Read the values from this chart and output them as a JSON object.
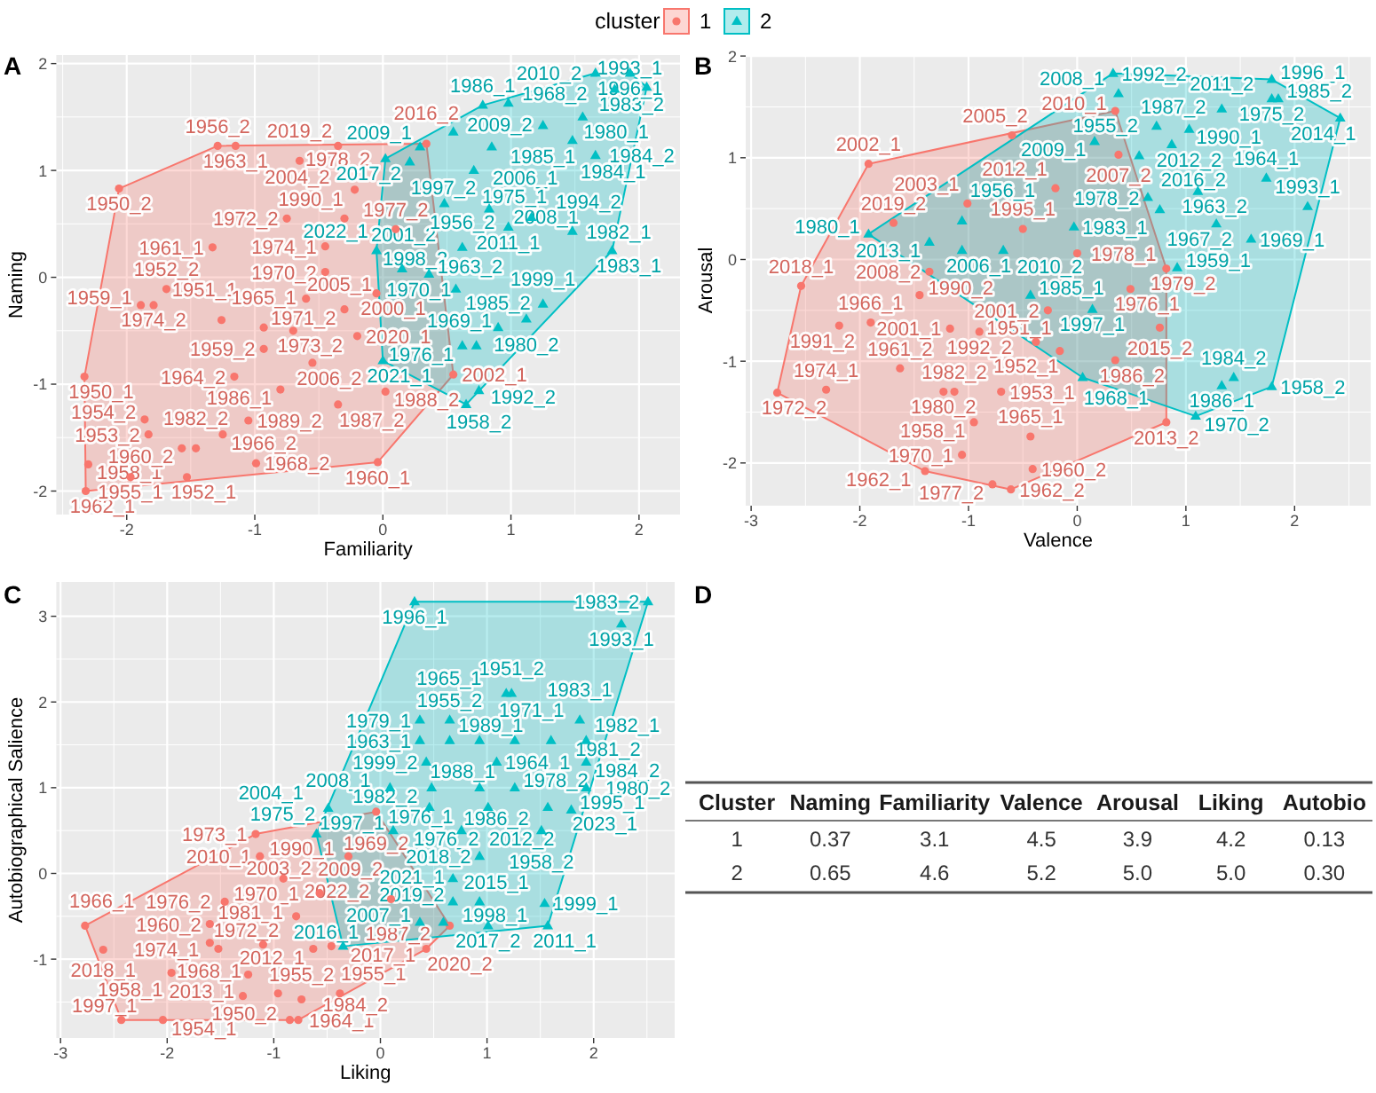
{
  "chart_data": [
    {
      "type": "scatter",
      "title": "A",
      "xlabel": "Familiarity",
      "ylabel": "Naming",
      "xlim": [
        -2.55,
        2.32
      ],
      "ylim": [
        -2.22,
        2.08
      ],
      "xticks": [
        -2,
        -1,
        0,
        1,
        2
      ],
      "yticks": [
        -2,
        -1,
        0,
        1,
        2
      ],
      "grid": true,
      "legend": "top",
      "legend_title": "cluster",
      "series": [
        {
          "name": "1",
          "color": "#f8766d",
          "marker": "circle",
          "x": [
            -2.06,
            -1.29,
            -1.15,
            -0.65,
            -0.35,
            0.34,
            -0.22,
            -0.75,
            -1.33,
            -0.45,
            -1.69,
            -1.89,
            -1.79,
            -1.26,
            -0.93,
            -0.93,
            -1.16,
            -2.33,
            -2.3,
            -2.32,
            -1.86,
            -1.83,
            -1.97,
            -1.53,
            -1.57,
            -1.46,
            -1.25,
            -1.05,
            -0.99,
            -0.04,
            -0.35,
            0.02,
            0.55,
            -0.45,
            -0.6,
            -0.3,
            -0.7,
            -0.2,
            -0.55,
            -0.8,
            -0.05,
            0.1,
            -0.3
          ],
          "values": [
            0.83,
            1.23,
            1.23,
            1.09,
            1.23,
            1.25,
            0.82,
            0.55,
            0.28,
            0.29,
            -0.11,
            -0.26,
            -0.26,
            -0.4,
            -0.47,
            -0.67,
            -0.93,
            -0.93,
            -1.75,
            -2.0,
            -1.33,
            -1.47,
            -1.87,
            -1.87,
            -1.6,
            -1.6,
            -1.47,
            -1.34,
            -1.74,
            -1.73,
            -1.19,
            -1.07,
            -0.91,
            0.05,
            -0.2,
            -0.3,
            -0.5,
            -0.55,
            -0.8,
            -1.05,
            -0.15,
            0.45,
            0.55
          ],
          "value_labels": [
            "1950_2",
            "1956_2",
            "1963_1",
            "2019_2",
            "2004_2",
            "2016_2",
            "1978_2",
            "1972_2",
            "1961_1",
            "1974_1",
            "1952_2",
            "1959_1",
            "1974_2",
            "1951_1",
            "1965_1",
            "1959_2",
            "1964_2",
            "1950_1",
            "1958_1",
            "1962_1",
            "1954_2",
            "1953_2",
            "1955_1",
            "1952_1",
            "1960_2",
            "1982_2",
            "1966_2",
            "1989_2",
            "1968_2",
            "1960_1",
            "1987_2",
            "1988_2",
            "2002_1",
            "1970_2",
            "2005_1",
            "1971_2",
            "1973_2",
            "2020_1",
            "2006_2",
            "1986_1",
            "2000_1",
            "1977_2",
            "1990_1"
          ]
        },
        {
          "name": "2",
          "color": "#00bfc4",
          "marker": "triangle",
          "x": [
            0.78,
            0.98,
            1.56,
            1.81,
            2.06,
            1.66,
            1.93,
            1.25,
            1.48,
            1.66,
            0.02,
            0.29,
            0.55,
            0.85,
            0.21,
            0.71,
            0.48,
            0.83,
            1.16,
            1.48,
            1.79,
            1.25,
            1.12,
            0.9,
            0.75,
            0.65,
            0.0,
            0.62,
            0.73,
            0.57,
            0.36,
            0.62,
            0.98,
            -0.05,
            0.15
          ],
          "values": [
            1.61,
            1.63,
            1.5,
            1.76,
            1.78,
            1.91,
            1.91,
            1.42,
            1.28,
            1.14,
            1.11,
            1.22,
            1.36,
            1.22,
            1.08,
            1.0,
            0.69,
            0.64,
            0.56,
            0.43,
            0.25,
            -0.25,
            -0.39,
            -0.47,
            -1.06,
            -1.19,
            -0.78,
            -0.64,
            -0.64,
            -0.11,
            0.03,
            0.28,
            0.47,
            0.25,
            0.08
          ],
          "value_labels": [
            "1986_1",
            "2010_2",
            "1980_1",
            "1983_2",
            "1993_1",
            "1968_2",
            "1996_1",
            "1985_1",
            "1984_1",
            "1984_2",
            "2017_2",
            "2009_1",
            "2009_2",
            "2006_1",
            "1997_2",
            "1975_1",
            "2001_2",
            "2008_1",
            "1994_2",
            "1982_1",
            "1983_1",
            "1999_1",
            "1980_2",
            "1985_2",
            "1958_2",
            "1992_2",
            "2021_1",
            "1976_1",
            "1969_1",
            "1998_2",
            "1963_2",
            "1956_2",
            "2011_1",
            "2022_1",
            "1970_1"
          ]
        }
      ]
    },
    {
      "type": "scatter",
      "title": "B",
      "xlabel": "Valence",
      "ylabel": "Arousal",
      "xlim": [
        -3.05,
        2.7
      ],
      "ylim": [
        -2.42,
        2.01
      ],
      "xticks": [
        -3,
        -2,
        -1,
        0,
        1,
        2
      ],
      "yticks": [
        -2,
        -1,
        0,
        1,
        2
      ],
      "grid": true,
      "series": [
        {
          "color": "#f8766d",
          "marker": "circle",
          "x": [
            -1.92,
            -2.54,
            -2.76,
            -2.31,
            -2.19,
            -1.9,
            -1.63,
            -1.45,
            -1.17,
            -0.9,
            -1.23,
            -1.13,
            -0.95,
            -1.06,
            -1.4,
            -0.78,
            -0.61,
            -0.41,
            -1.01,
            -1.36,
            -1.69,
            -0.6,
            0.35,
            0.38,
            0.0,
            0.76,
            0.35,
            -0.38,
            -0.16,
            0.82,
            0.82,
            -0.43,
            -0.27,
            0.49,
            -0.5,
            -0.2,
            -0.7
          ],
          "values": [
            0.94,
            -0.26,
            -1.31,
            -1.28,
            -0.65,
            -0.62,
            -1.07,
            -0.35,
            -0.68,
            -0.71,
            -1.3,
            -1.3,
            -1.6,
            -1.92,
            -2.08,
            -2.21,
            -2.26,
            -2.06,
            0.55,
            -0.12,
            0.36,
            1.22,
            1.46,
            1.03,
            0.06,
            -0.67,
            -0.99,
            -0.81,
            -0.9,
            -1.6,
            -0.09,
            -1.74,
            -0.5,
            -0.29,
            0.3,
            0.7,
            -1.3
          ],
          "value_labels": [
            "2002_1",
            "2018_1",
            "1972_2",
            "1974_1",
            "1991_2",
            "1966_1",
            "1961_2",
            "1990_2",
            "2001_1",
            "1992_2",
            "1980_2",
            "1982_2",
            "1958_1",
            "1970_1",
            "1962_1",
            "1977_2",
            "1962_2",
            "1960_2",
            "2003_1",
            "2008_2",
            "2019_2",
            "2005_2",
            "2010_1",
            "2007_2",
            "1978_1",
            "2015_2",
            "1986_2",
            "1951_1",
            "1952_1",
            "2013_2",
            "1979_2",
            "1965_1",
            "2001_2",
            "1976_1",
            "1995_1",
            "2012_1",
            "1953_1"
          ]
        },
        {
          "color": "#00bfc4",
          "marker": "triangle",
          "x": [
            -1.92,
            -1.06,
            -1.36,
            -1.06,
            -0.68,
            -0.43,
            0.33,
            0.38,
            1.79,
            1.79,
            1.85,
            0.73,
            2.42,
            1.33,
            1.03,
            1.74,
            2.12,
            1.6,
            1.11,
            1.28,
            1.44,
            1.33,
            1.79,
            1.09,
            -0.03,
            0.14,
            0.05,
            0.16,
            0.65,
            0.87,
            0.57,
            0.76,
            0.92
          ],
          "values": [
            0.25,
            0.38,
            0.17,
            0.09,
            0.09,
            -0.35,
            1.83,
            1.63,
            1.77,
            1.58,
            1.58,
            1.31,
            1.39,
            1.48,
            1.28,
            0.8,
            0.52,
            0.2,
            0.67,
            0.35,
            -1.16,
            -1.24,
            -1.25,
            -1.54,
            0.32,
            -0.49,
            -1.16,
            1.16,
            0.61,
            1.13,
            1.02,
            0.49,
            -0.08
          ],
          "value_labels": [
            "1980_1",
            "1956_1",
            "2013_1",
            "2006_1",
            "2010_2",
            "1985_1",
            "1992_2",
            "2008_1",
            "1996_1",
            "1975_2",
            "1985_2",
            "1987_2",
            "2014_1",
            "2011_2",
            "2012_2",
            "1964_1",
            "1993_1",
            "1969_1",
            "1963_2",
            "1967_2",
            "1984_2",
            "1986_1",
            "1958_2",
            "1970_2",
            "1983_1",
            "1997_1",
            "1968_1",
            "2009_1",
            "1978_2",
            "1990_1",
            "1955_2",
            "2016_2",
            "1959_1"
          ]
        }
      ]
    },
    {
      "type": "scatter",
      "title": "C",
      "xlabel": "Liking",
      "ylabel": "Autobiographical Salience",
      "xlim": [
        -3.04,
        2.76
      ],
      "ylim": [
        -1.92,
        3.4
      ],
      "xticks": [
        -3,
        -2,
        -1,
        0,
        1,
        2
      ],
      "yticks": [
        -1,
        0,
        1,
        2,
        3
      ],
      "grid": true,
      "series": [
        {
          "color": "#f8766d",
          "marker": "circle",
          "x": [
            -2.77,
            -2.6,
            -2.43,
            -2.04,
            -1.96,
            -1.52,
            -1.17,
            -1.13,
            -1.6,
            -1.24,
            -1.29,
            -0.38,
            -0.85,
            -0.77,
            -0.04,
            0.43,
            0.65,
            -0.63,
            -0.74,
            -0.91,
            -1.6,
            -1.1,
            -0.96,
            -0.57,
            -0.79,
            -0.46,
            -1.46,
            -0.3,
            0.1
          ],
          "values": [
            -0.61,
            -0.89,
            -1.71,
            -1.71,
            -1.16,
            -0.88,
            0.46,
            0.2,
            -0.59,
            -1.18,
            -1.43,
            -1.4,
            -1.71,
            -1.71,
            0.72,
            -0.88,
            -0.61,
            -0.88,
            -1.47,
            -0.06,
            -0.81,
            -0.83,
            -1.4,
            -0.23,
            -0.5,
            -0.85,
            -0.33,
            0.2,
            -0.3
          ],
          "value_labels": [
            "1966_1",
            "2018_1",
            "1997_1",
            "1954_1",
            "1958_1",
            "1974_1",
            "1973_1",
            "2010_1",
            "1960_2",
            "2013_1",
            "1968_1",
            "1955_1",
            "1964_1",
            "1984_2",
            "1969_2",
            "2020_2",
            "1987_2",
            "2012_1",
            "1955_2",
            "1970_1",
            "1981_1",
            "1972_2",
            "1950_2",
            "2003_2",
            "2022_2",
            "2017_1",
            "1976_2",
            "1990_1",
            "2009_2"
          ]
        },
        {
          "color": "#00bfc4",
          "marker": "triangle",
          "x": [
            0.32,
            2.51,
            2.26,
            1.18,
            1.23,
            0.37,
            0.65,
            1.87,
            0.37,
            0.65,
            0.93,
            1.26,
            1.6,
            1.93,
            0.43,
            1.09,
            1.93,
            0.09,
            0.48,
            0.93,
            1.26,
            1.93,
            0.46,
            1.01,
            1.57,
            1.79,
            -0.49,
            -0.6,
            0.12,
            0.76,
            1.51,
            0.93,
            0.68,
            0.68,
            0.93,
            1.54,
            1.57,
            1.01,
            0.37,
            0.59,
            -0.35
          ],
          "values": [
            3.17,
            3.17,
            2.91,
            2.1,
            2.1,
            1.79,
            1.79,
            1.79,
            1.55,
            1.55,
            1.55,
            1.55,
            1.55,
            1.55,
            1.3,
            1.3,
            1.3,
            1.0,
            1.0,
            1.0,
            1.0,
            1.0,
            0.77,
            0.77,
            0.77,
            0.74,
            0.76,
            0.46,
            0.5,
            0.5,
            0.5,
            0.2,
            -0.06,
            -0.33,
            -0.33,
            -0.35,
            -0.61,
            -0.61,
            -0.57,
            -0.57,
            -0.85
          ],
          "value_labels": [
            "1996_1",
            "1983_2",
            "1993_1",
            "1965_1",
            "1951_2",
            "1979_1",
            "1955_2",
            "1983_1",
            "1963_1",
            "1989_1",
            "1988_1",
            "1971_1",
            "1981_2",
            "1982_1",
            "1999_2",
            "1964_1",
            "1984_2",
            "2008_1",
            "1982_2",
            "1986_2",
            "1978_2",
            "1980_2",
            "1976_2",
            "2012_2",
            "2023_1",
            "1995_1",
            "2004_1",
            "1975_2",
            "1997_1",
            "1976_1",
            "1958_2",
            "2018_2",
            "2019_2",
            "2021_1",
            "2015_1",
            "1999_1",
            "2011_1",
            "2017_2",
            "2007_1",
            "1998_1",
            "2016_1"
          ]
        }
      ]
    },
    {
      "type": "other",
      "title": "D",
      "ylabel": "Cluster",
      "categories": [
        "Naming",
        "Familiarity",
        "Valence",
        "Arousal",
        "Liking",
        "Autobio"
      ],
      "series": [
        {
          "name": "1",
          "values": [
            0.37,
            3.1,
            4.5,
            3.9,
            4.2,
            0.13
          ],
          "value_labels": [
            "0.37",
            "3.1",
            "4.5",
            "3.9",
            "4.2",
            "0.13"
          ]
        },
        {
          "name": "2",
          "values": [
            0.65,
            4.6,
            5.2,
            5.0,
            5.0,
            0.3
          ],
          "value_labels": [
            "0.65",
            "4.6",
            "5.2",
            "5.0",
            "5.0",
            "0.30"
          ]
        }
      ]
    }
  ]
}
